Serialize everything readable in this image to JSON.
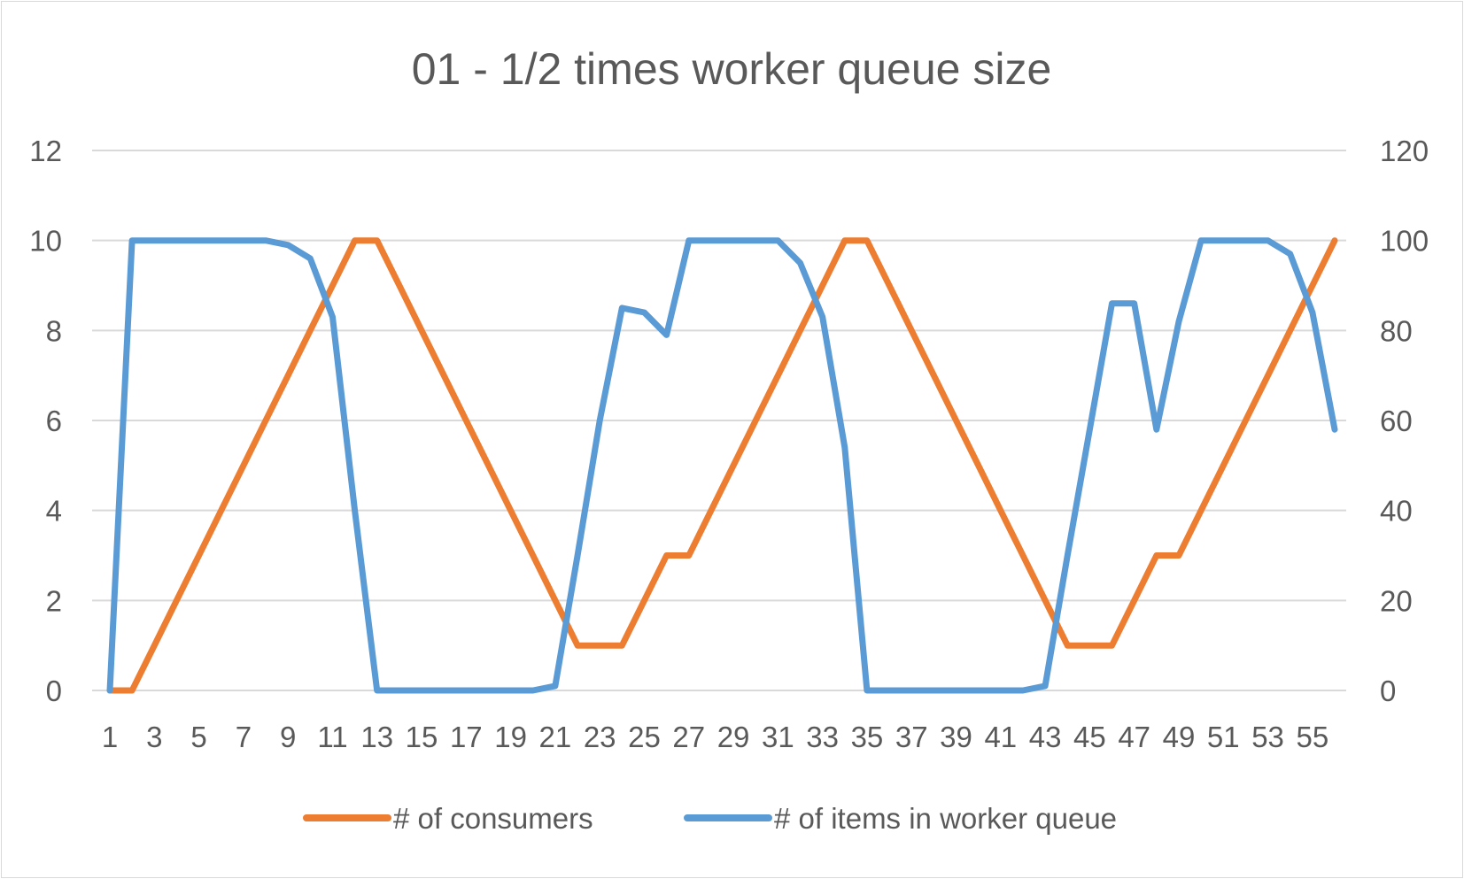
{
  "chart_data": {
    "type": "line",
    "title": "01 - 1/2 times worker queue size",
    "xlabel": "",
    "ylabel": "",
    "x": [
      1,
      2,
      3,
      4,
      5,
      6,
      7,
      8,
      9,
      10,
      11,
      12,
      13,
      14,
      15,
      16,
      17,
      18,
      19,
      20,
      21,
      22,
      23,
      24,
      25,
      26,
      27,
      28,
      29,
      30,
      31,
      32,
      33,
      34,
      35,
      36,
      37,
      38,
      39,
      40,
      41,
      42,
      43,
      44,
      45,
      46,
      47,
      48,
      49,
      50,
      51,
      52,
      53,
      54,
      55,
      56
    ],
    "x_tick_labels": [
      "1",
      "3",
      "5",
      "7",
      "9",
      "11",
      "13",
      "15",
      "17",
      "19",
      "21",
      "23",
      "25",
      "27",
      "29",
      "31",
      "33",
      "35",
      "37",
      "39",
      "41",
      "43",
      "45",
      "47",
      "49",
      "51",
      "53",
      "55"
    ],
    "y_left": {
      "min": 0,
      "max": 12,
      "ticks": [
        "0",
        "2",
        "4",
        "6",
        "8",
        "10",
        "12"
      ],
      "tick_values": [
        0,
        2,
        4,
        6,
        8,
        10,
        12
      ]
    },
    "y_right": {
      "min": 0,
      "max": 120,
      "ticks": [
        "0",
        "20",
        "40",
        "60",
        "80",
        "100",
        "120"
      ],
      "tick_values": [
        0,
        20,
        40,
        60,
        80,
        100,
        120
      ]
    },
    "grid": true,
    "legend_position": "bottom",
    "series": [
      {
        "name": "# of consumers",
        "axis": "left",
        "color": "#ED7D31",
        "values": [
          0,
          0,
          1,
          2,
          3,
          4,
          5,
          6,
          7,
          8,
          9,
          10,
          10,
          9,
          8,
          7,
          6,
          5,
          4,
          3,
          2,
          1,
          1,
          1,
          2,
          3,
          3,
          4,
          5,
          6,
          7,
          8,
          9,
          10,
          10,
          9,
          8,
          7,
          6,
          5,
          4,
          3,
          2,
          1,
          1,
          1,
          2,
          3,
          3,
          4,
          5,
          6,
          7,
          8,
          9,
          10
        ]
      },
      {
        "name": "# of items in worker queue",
        "axis": "right",
        "color": "#5B9BD5",
        "values": [
          0,
          100,
          100,
          100,
          100,
          100,
          100,
          100,
          99,
          96,
          83,
          40,
          0,
          0,
          0,
          0,
          0,
          0,
          0,
          0,
          1,
          30,
          60,
          85,
          84,
          79,
          100,
          100,
          100,
          100,
          100,
          95,
          83,
          54,
          0,
          0,
          0,
          0,
          0,
          0,
          0,
          0,
          1,
          30,
          58,
          86,
          86,
          58,
          82,
          100,
          100,
          100,
          100,
          97,
          84,
          58
        ]
      }
    ]
  }
}
